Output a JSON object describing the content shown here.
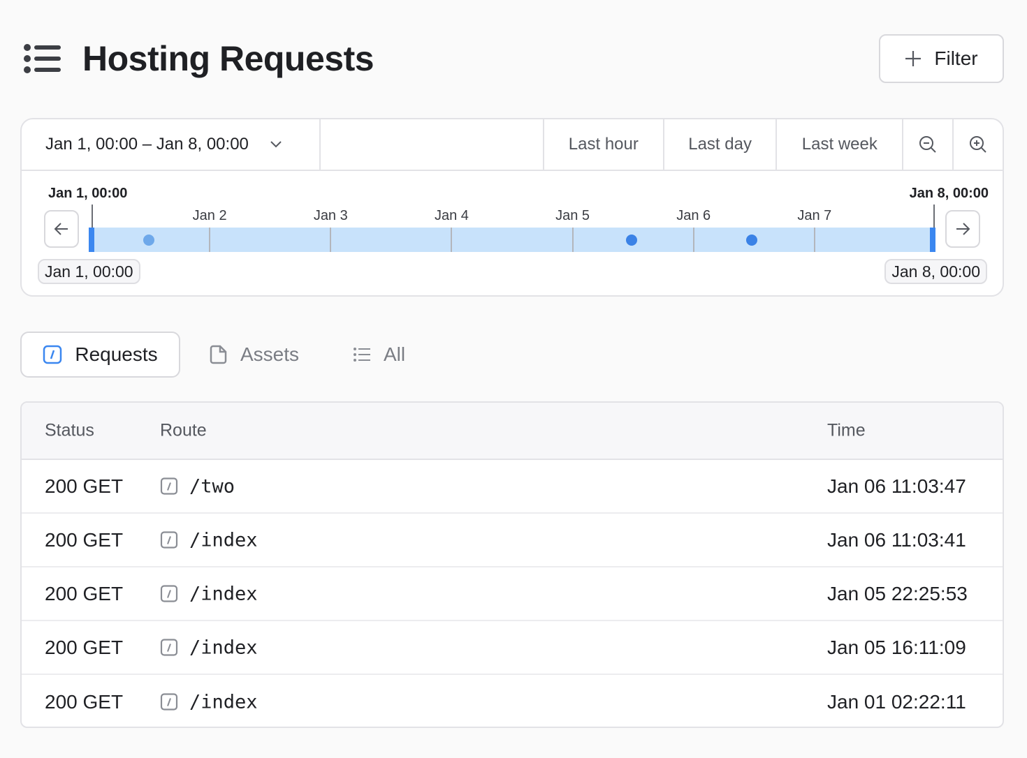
{
  "header": {
    "title": "Hosting Requests",
    "filter_label": "Filter"
  },
  "timerange": {
    "range_label": "Jan 1, 00:00 – Jan 8, 00:00",
    "presets": [
      "Last hour",
      "Last day",
      "Last week"
    ],
    "start_label": "Jan 1, 00:00",
    "end_label": "Jan 8, 00:00",
    "ticks": [
      "Jan 2",
      "Jan 3",
      "Jan 4",
      "Jan 5",
      "Jan 6",
      "Jan 7"
    ],
    "start_pill": "Jan 1, 00:00",
    "end_pill": "Jan 8, 00:00",
    "accent": "#3b87f0"
  },
  "tabs": [
    {
      "label": "Requests",
      "active": true
    },
    {
      "label": "Assets"
    },
    {
      "label": "All"
    }
  ],
  "table": {
    "columns": [
      "Status",
      "Route",
      "Time"
    ],
    "rows": [
      {
        "status": "200 GET",
        "route": "/two",
        "time": "Jan 06 11:03:47"
      },
      {
        "status": "200 GET",
        "route": "/index",
        "time": "Jan 06 11:03:41"
      },
      {
        "status": "200 GET",
        "route": "/index",
        "time": "Jan 05 22:25:53"
      },
      {
        "status": "200 GET",
        "route": "/index",
        "time": "Jan 05 16:11:09"
      },
      {
        "status": "200 GET",
        "route": "/index",
        "time": "Jan 01 02:22:11"
      }
    ]
  }
}
